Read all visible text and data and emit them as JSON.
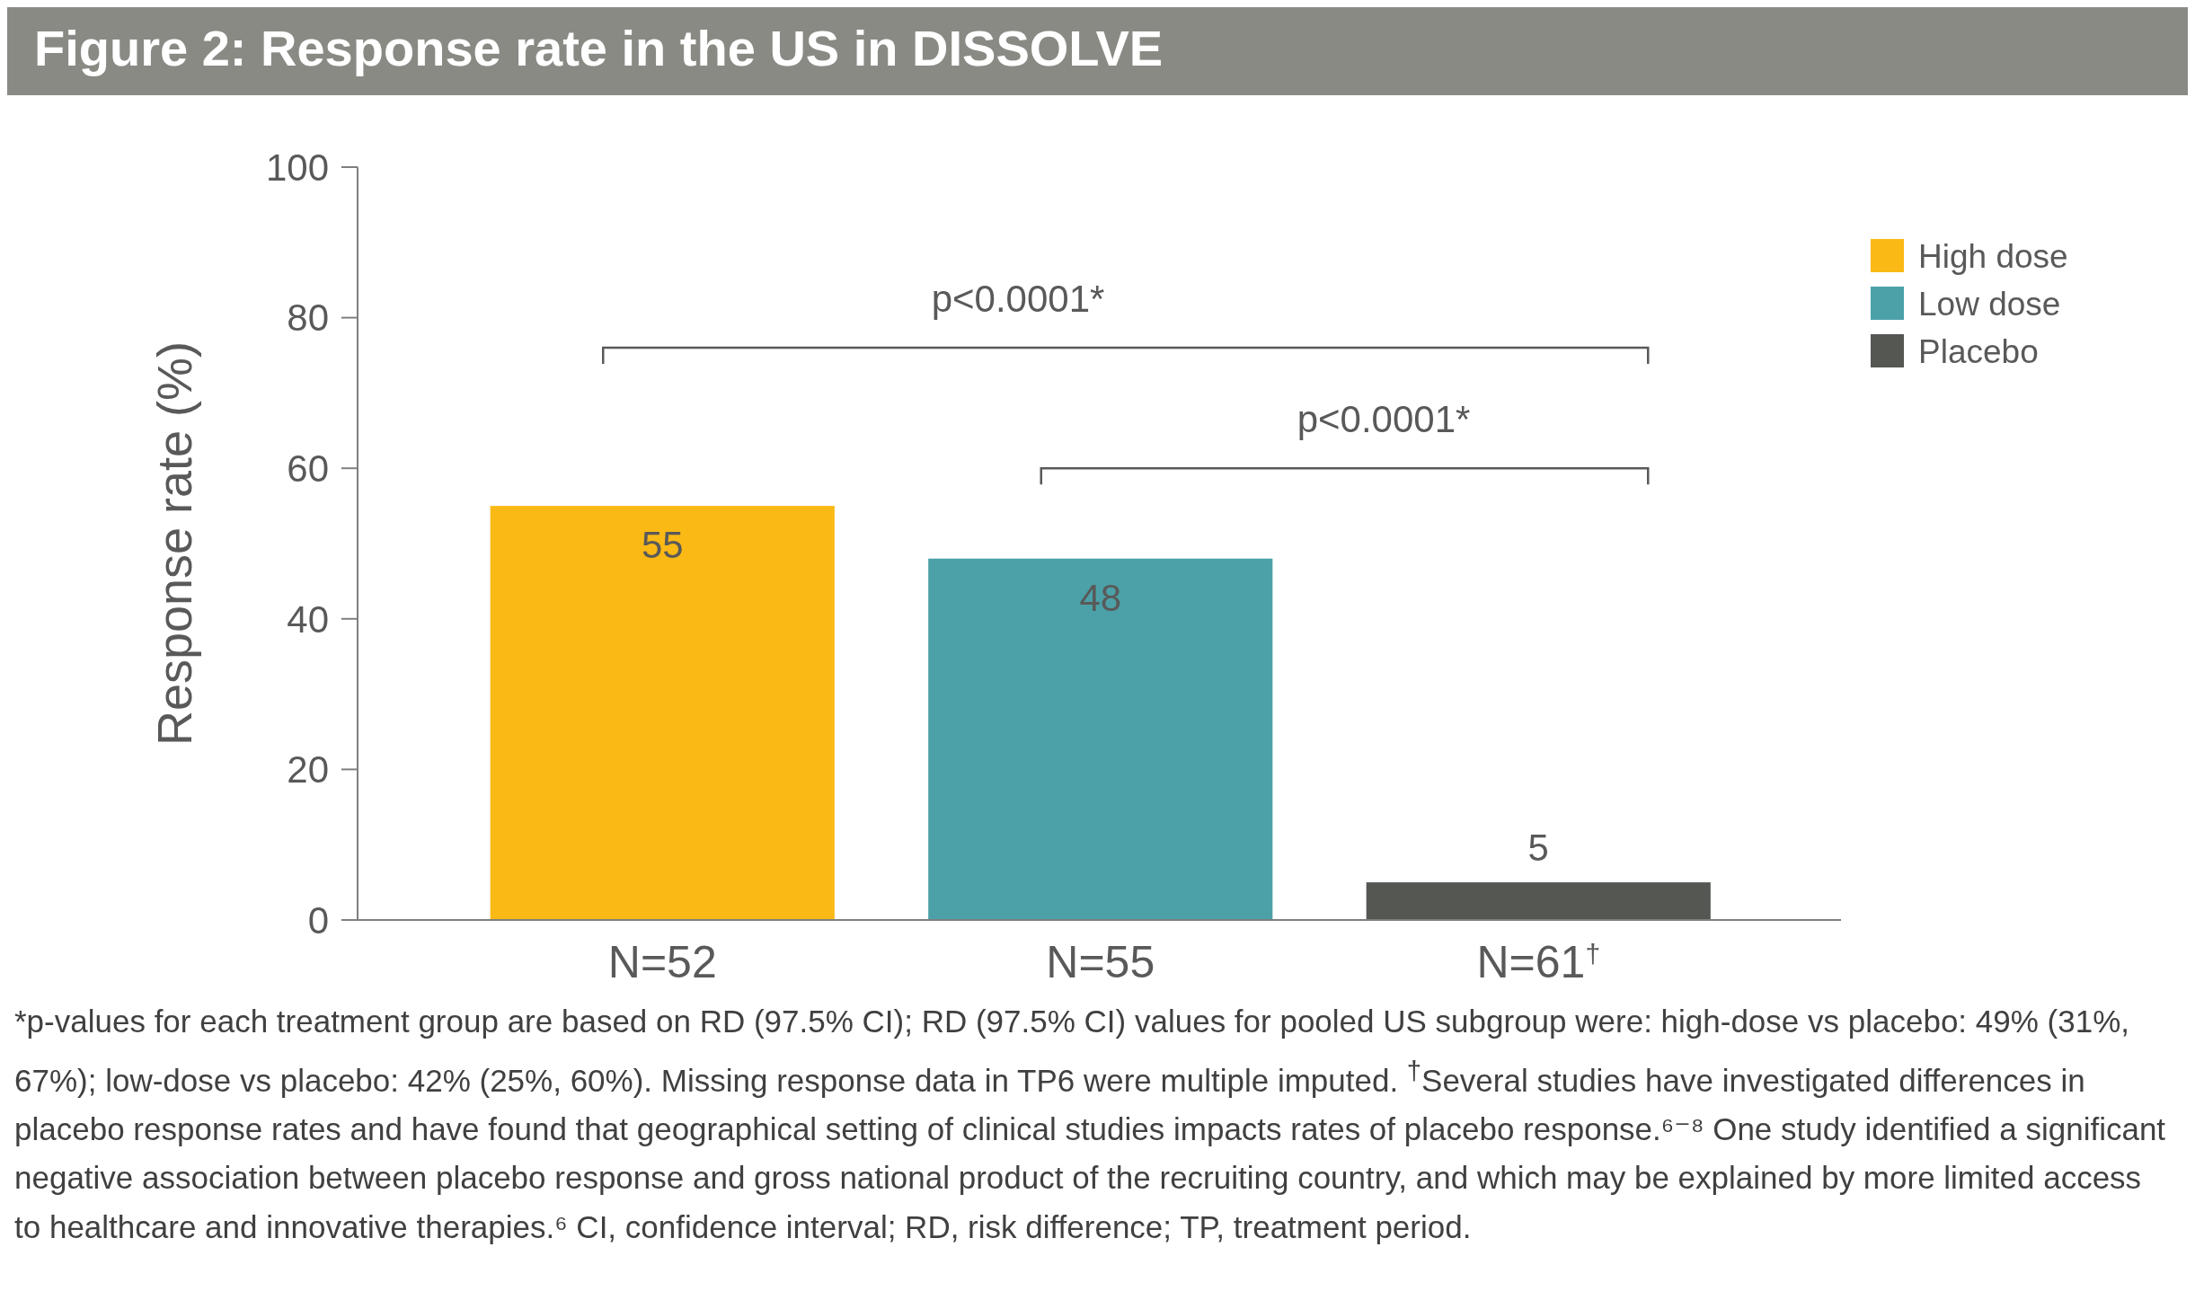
{
  "chart_data": {
    "type": "bar",
    "title": "Figure 2: Response rate in the US in DISSOLVE",
    "ylabel": "Response rate (%)",
    "categories": [
      "N=52",
      "N=55",
      "N=61$^{†}$"
    ],
    "series": [
      {
        "name": "High dose",
        "color": "#fbb915",
        "values": [
          55,
          null,
          null
        ]
      },
      {
        "name": "Low dose",
        "color": "#4ca1a8",
        "values": [
          null,
          48,
          null
        ]
      },
      {
        "name": "Placebo",
        "color": "#555753",
        "values": [
          null,
          null,
          5
        ]
      }
    ],
    "ylim": [
      0,
      100
    ],
    "yticks": [
      0,
      20,
      40,
      60,
      80,
      100
    ],
    "grid": false,
    "legend": "top right",
    "data_labels": true,
    "annotations": [
      "p<0.0001*",
      "p<0.0001*",
      "*p-values for each treatment group are based on RD (97.5% CI); RD (97.5% CI) values for pooled US subgroup were: high-dose vs placebo: 49% (31%, 67%); low-dose vs placebo: 42% (25%, 60%). Missing response data in TP6 were multiple imputed. $^{†}$Several studies have investigated differences in placebo response rates and have found that geographical setting of clinical studies impacts rates of placebo response.⁶⁻⁸ One study identified a significant negative association between placebo response and gross national product of the recruiting country, and which may be explained by more limited access to healthcare and innovative therapies.⁶ CI, confidence interval; RD, risk difference; TP, treatment period."
    ]
  }
}
